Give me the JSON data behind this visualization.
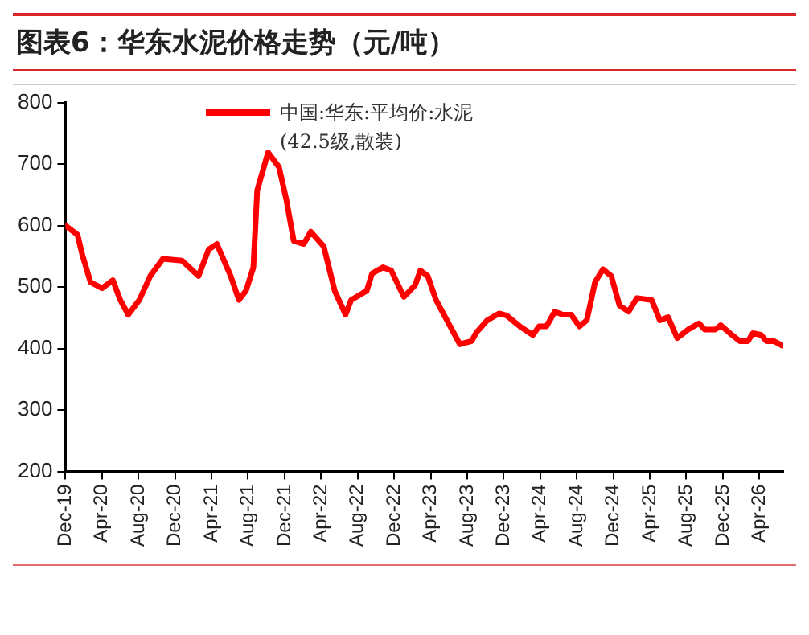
{
  "chart_data": {
    "type": "line",
    "title": "图表6：华东水泥价格走势（元/吨）",
    "series": [
      {
        "name": "中国:华东:平均价:水泥(42.5级,散装)",
        "color": "#ff0000",
        "x": [
          "2019-12-01",
          "2020-01-11",
          "2020-01-28",
          "2020-02-24",
          "2020-04-01",
          "2020-05-07",
          "2020-06-01",
          "2020-06-28",
          "2020-08-04",
          "2020-09-10",
          "2020-10-22",
          "2020-12-25",
          "2021-02-19",
          "2021-03-22",
          "2021-04-19",
          "2021-06-04",
          "2021-07-01",
          "2021-07-25",
          "2021-08-19",
          "2021-09-01",
          "2021-10-07",
          "2021-11-13",
          "2021-12-07",
          "2022-01-01",
          "2022-02-04",
          "2022-02-28",
          "2022-04-10",
          "2022-05-16",
          "2022-06-22",
          "2022-07-10",
          "2022-09-01",
          "2022-09-19",
          "2022-10-25",
          "2022-11-22",
          "2023-01-03",
          "2023-02-10",
          "2023-02-28",
          "2023-03-22",
          "2023-04-19",
          "2023-05-25",
          "2023-07-07",
          "2023-08-16",
          "2023-09-01",
          "2023-10-07",
          "2023-11-16",
          "2023-12-10",
          "2024-01-25",
          "2024-03-07",
          "2024-03-28",
          "2024-04-22",
          "2024-05-19",
          "2024-06-16",
          "2024-07-13",
          "2024-08-10",
          "2024-09-04",
          "2024-10-01",
          "2024-10-28",
          "2024-11-25",
          "2024-12-22",
          "2025-01-22",
          "2025-02-19",
          "2025-04-07",
          "2025-05-04",
          "2025-06-01",
          "2025-07-01",
          "2025-08-07",
          "2025-09-13",
          "2025-10-01",
          "2025-11-07",
          "2025-11-25",
          "2026-01-01",
          "2026-01-28",
          "2026-02-24",
          "2026-03-10",
          "2026-04-07",
          "2026-04-25",
          "2026-05-19",
          "2026-06-16"
        ],
        "values": [
          600,
          585,
          551,
          508,
          498,
          511,
          479,
          455,
          479,
          518,
          546,
          543,
          518,
          561,
          570,
          518,
          479,
          494,
          532,
          657,
          719,
          695,
          642,
          575,
          570,
          590,
          566,
          494,
          455,
          479,
          494,
          522,
          532,
          527,
          484,
          503,
          527,
          518,
          479,
          446,
          407,
          412,
          426,
          446,
          457,
          454,
          436,
          422,
          436,
          436,
          460,
          455,
          455,
          436,
          446,
          508,
          529,
          518,
          470,
          460,
          482,
          479,
          446,
          451,
          417,
          431,
          441,
          431,
          431,
          438,
          422,
          412,
          412,
          425,
          422,
          412,
          412,
          405
        ]
      }
    ],
    "xlim": [
      "2019-12-01",
      "2026-06-20"
    ],
    "xticks": [
      {
        "value": "2019-12-01",
        "label": "Dec-19"
      },
      {
        "value": "2020-04-01",
        "label": "Apr-20"
      },
      {
        "value": "2020-08-01",
        "label": "Aug-20"
      },
      {
        "value": "2020-12-01",
        "label": "Dec-20"
      },
      {
        "value": "2021-04-01",
        "label": "Apr-21"
      },
      {
        "value": "2021-08-01",
        "label": "Aug-21"
      },
      {
        "value": "2021-12-01",
        "label": "Dec-21"
      },
      {
        "value": "2022-04-01",
        "label": "Apr-22"
      },
      {
        "value": "2022-08-01",
        "label": "Aug-22"
      },
      {
        "value": "2022-12-01",
        "label": "Dec-22"
      },
      {
        "value": "2023-04-01",
        "label": "Apr-23"
      },
      {
        "value": "2023-08-01",
        "label": "Aug-23"
      },
      {
        "value": "2023-12-01",
        "label": "Dec-23"
      },
      {
        "value": "2024-04-01",
        "label": "Apr-24"
      },
      {
        "value": "2024-08-01",
        "label": "Aug-24"
      },
      {
        "value": "2024-12-01",
        "label": "Dec-24"
      },
      {
        "value": "2025-04-01",
        "label": "Apr-25"
      },
      {
        "value": "2025-08-01",
        "label": "Aug-25"
      },
      {
        "value": "2025-12-01",
        "label": "Dec-25"
      },
      {
        "value": "2026-04-01",
        "label": "Apr-26"
      }
    ],
    "ylim": [
      200,
      800
    ],
    "yticks": [
      200,
      300,
      400,
      500,
      600,
      700,
      800
    ],
    "grid": false,
    "legend": "top",
    "marker": "none",
    "line_style": "solid"
  }
}
